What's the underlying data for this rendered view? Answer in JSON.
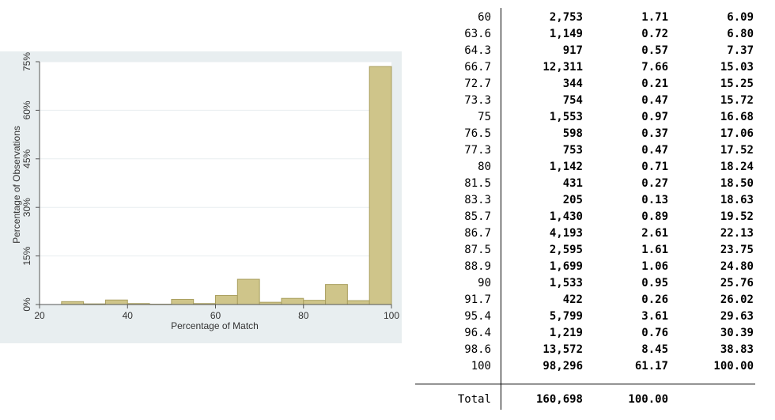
{
  "chart_data": {
    "type": "bar",
    "title": "",
    "xlabel": "Percentage of Match",
    "ylabel": "Percentage of Observations",
    "xlim": [
      20,
      100
    ],
    "ylim": [
      0,
      75
    ],
    "x_ticks": [
      "20",
      "40",
      "60",
      "80",
      "100"
    ],
    "y_ticks": [
      "0%",
      "15%",
      "30%",
      "45%",
      "60%",
      "75%"
    ],
    "bin_width": 5,
    "bins": [
      {
        "x": 27.5,
        "value": 0.9
      },
      {
        "x": 32.5,
        "value": 0.2
      },
      {
        "x": 37.5,
        "value": 1.4
      },
      {
        "x": 42.5,
        "value": 0.3
      },
      {
        "x": 47.5,
        "value": 0.1
      },
      {
        "x": 52.5,
        "value": 1.6
      },
      {
        "x": 57.5,
        "value": 0.3
      },
      {
        "x": 62.5,
        "value": 2.8
      },
      {
        "x": 67.5,
        "value": 7.8
      },
      {
        "x": 72.5,
        "value": 0.7
      },
      {
        "x": 77.5,
        "value": 1.9
      },
      {
        "x": 82.5,
        "value": 1.3
      },
      {
        "x": 87.5,
        "value": 6.2
      },
      {
        "x": 92.5,
        "value": 1.2
      },
      {
        "x": 97.5,
        "value": 73.5
      }
    ],
    "grid": true,
    "bar_color": "#cfc58a",
    "background_color": "#e8eef0"
  },
  "table": {
    "rows": [
      {
        "value": "60",
        "freq": "2,753",
        "percent": "1.71",
        "cum": "6.09"
      },
      {
        "value": "63.6",
        "freq": "1,149",
        "percent": "0.72",
        "cum": "6.80"
      },
      {
        "value": "64.3",
        "freq": "917",
        "percent": "0.57",
        "cum": "7.37"
      },
      {
        "value": "66.7",
        "freq": "12,311",
        "percent": "7.66",
        "cum": "15.03"
      },
      {
        "value": "72.7",
        "freq": "344",
        "percent": "0.21",
        "cum": "15.25"
      },
      {
        "value": "73.3",
        "freq": "754",
        "percent": "0.47",
        "cum": "15.72"
      },
      {
        "value": "75",
        "freq": "1,553",
        "percent": "0.97",
        "cum": "16.68"
      },
      {
        "value": "76.5",
        "freq": "598",
        "percent": "0.37",
        "cum": "17.06"
      },
      {
        "value": "77.3",
        "freq": "753",
        "percent": "0.47",
        "cum": "17.52"
      },
      {
        "value": "80",
        "freq": "1,142",
        "percent": "0.71",
        "cum": "18.24"
      },
      {
        "value": "81.5",
        "freq": "431",
        "percent": "0.27",
        "cum": "18.50"
      },
      {
        "value": "83.3",
        "freq": "205",
        "percent": "0.13",
        "cum": "18.63"
      },
      {
        "value": "85.7",
        "freq": "1,430",
        "percent": "0.89",
        "cum": "19.52"
      },
      {
        "value": "86.7",
        "freq": "4,193",
        "percent": "2.61",
        "cum": "22.13"
      },
      {
        "value": "87.5",
        "freq": "2,595",
        "percent": "1.61",
        "cum": "23.75"
      },
      {
        "value": "88.9",
        "freq": "1,699",
        "percent": "1.06",
        "cum": "24.80"
      },
      {
        "value": "90",
        "freq": "1,533",
        "percent": "0.95",
        "cum": "25.76"
      },
      {
        "value": "91.7",
        "freq": "422",
        "percent": "0.26",
        "cum": "26.02"
      },
      {
        "value": "95.4",
        "freq": "5,799",
        "percent": "3.61",
        "cum": "29.63"
      },
      {
        "value": "96.4",
        "freq": "1,219",
        "percent": "0.76",
        "cum": "30.39"
      },
      {
        "value": "98.6",
        "freq": "13,572",
        "percent": "8.45",
        "cum": "38.83"
      },
      {
        "value": "100",
        "freq": "98,296",
        "percent": "61.17",
        "cum": "100.00"
      }
    ],
    "total": {
      "label": "Total",
      "freq": "160,698",
      "percent": "100.00"
    }
  }
}
